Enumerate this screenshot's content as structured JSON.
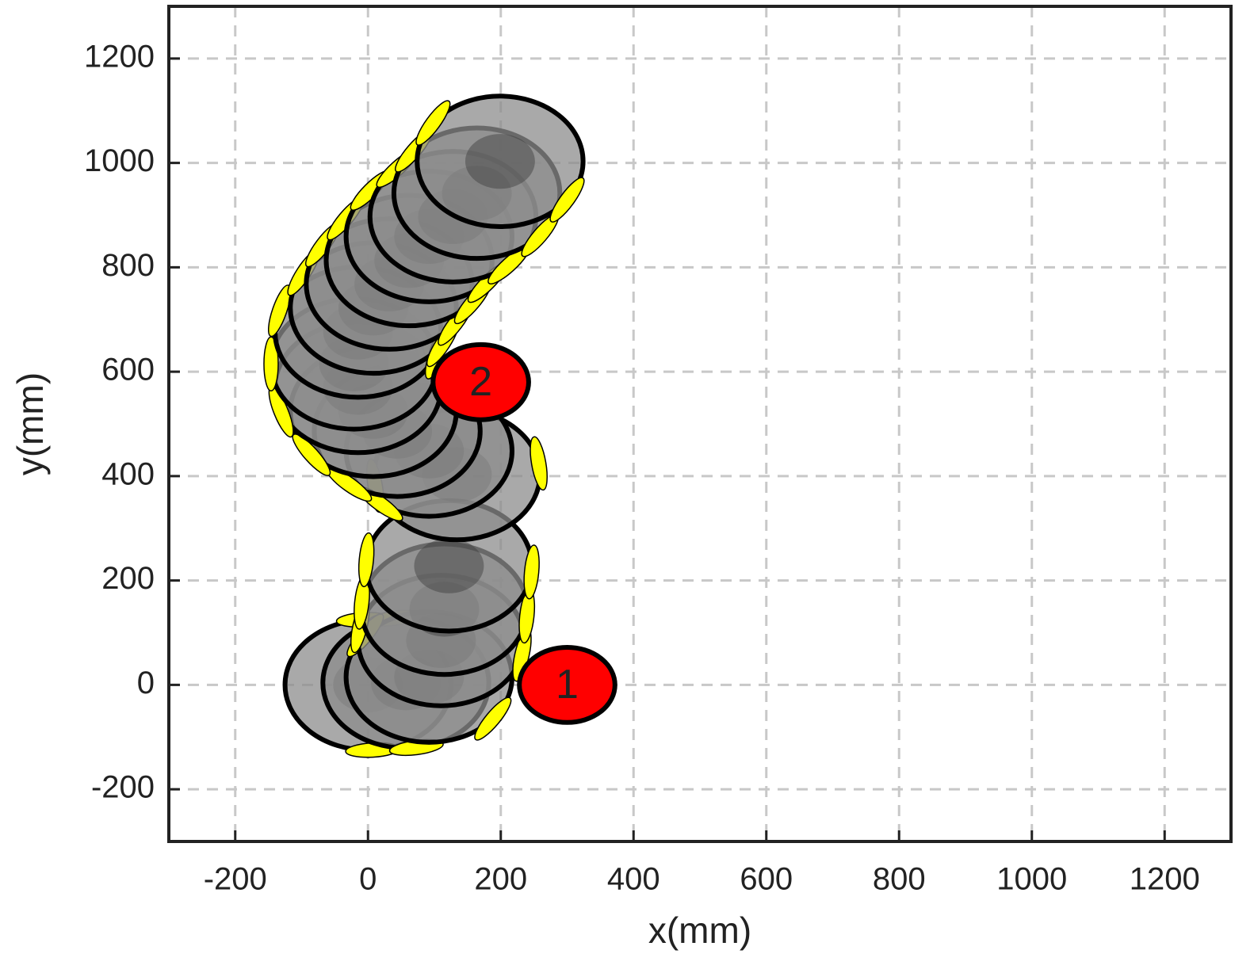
{
  "chart_data": {
    "type": "scatter",
    "x_label": "x(mm)",
    "y_label": "y(mm)",
    "xlim": [
      -300,
      1300
    ],
    "ylim": [
      -300,
      1300
    ],
    "xticks": [
      -200,
      0,
      200,
      400,
      600,
      800,
      1000,
      1200
    ],
    "yticks": [
      -200,
      0,
      200,
      400,
      600,
      800,
      1000,
      1200
    ],
    "grid": true,
    "robot": {
      "color": "#8c8c8c",
      "wheel_color": "#ffff00",
      "radius": 125,
      "x": [
        0,
        57,
        92,
        110,
        115,
        122,
        134,
        92,
        44,
        8,
        -15,
        -21,
        -15,
        8,
        32,
        62,
        92,
        128,
        164,
        199
      ],
      "y": [
        0,
        4,
        15,
        85,
        145,
        228,
        403,
        448,
        486,
        524,
        570,
        615,
        676,
        722,
        768,
        813,
        859,
        897,
        942,
        1003
      ]
    },
    "goals": {
      "color": "#ff0000",
      "radius": 72,
      "x": [
        300,
        170
      ],
      "y": [
        0,
        580
      ],
      "labels": [
        "1",
        "2"
      ]
    }
  }
}
